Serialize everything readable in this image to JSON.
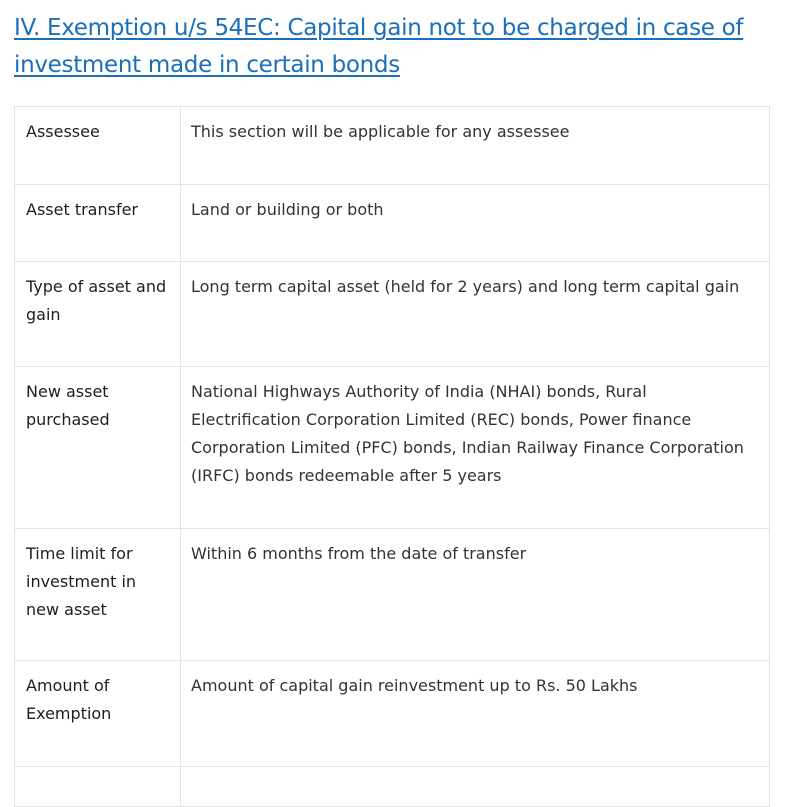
{
  "heading": {
    "text": "IV. Exemption u/s 54EC: Capital gain not to be charged in case of investment made in certain bonds"
  },
  "table": {
    "rows": [
      {
        "label": "Assessee",
        "value": "This section will be applicable for any assessee"
      },
      {
        "label": "Asset transfer",
        "value": "Land or building or both"
      },
      {
        "label": "Type of asset and gain",
        "value": "Long term capital asset (held for 2 years) and long term capital gain"
      },
      {
        "label": "New asset purchased",
        "value": "National Highways Authority of India (NHAI) bonds, Rural Electrification Corporation Limited (REC) bonds, Power finance Corporation Limited (PFC) bonds, Indian Railway Finance Corporation (IRFC) bonds redeemable after 5 years"
      },
      {
        "label": "Time limit for investment in new asset",
        "value": "Within 6 months from the date of transfer"
      },
      {
        "label": "Amount of Exemption",
        "value": "Amount of capital gain reinvestment up to Rs. 50 Lakhs"
      },
      {
        "label": "",
        "value": ""
      }
    ]
  },
  "colors": {
    "link": "#1a6fb8",
    "border": "#e4e4e4",
    "text": "#222222"
  }
}
